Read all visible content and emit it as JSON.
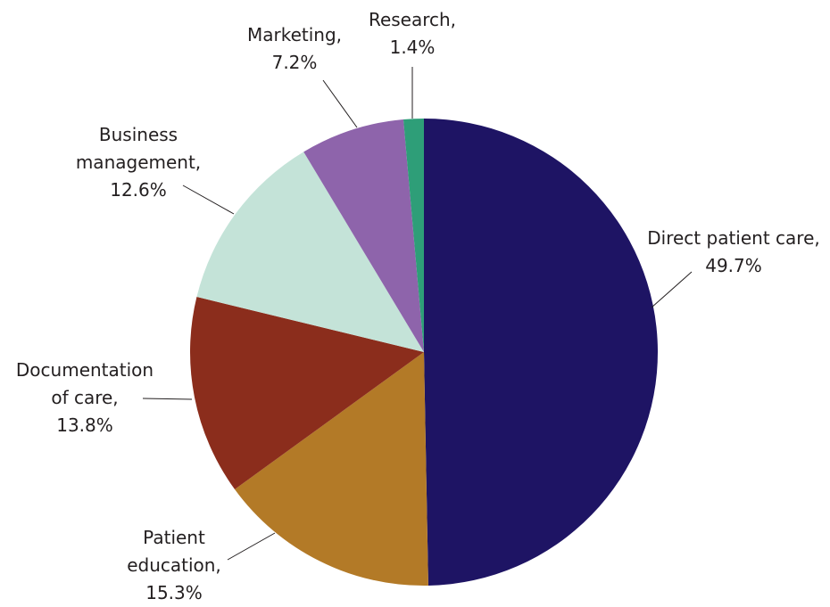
{
  "chart_data": {
    "type": "pie",
    "categories": [
      "Direct patient care,",
      "Patient\neducation,",
      "Documentation\nof care,",
      "Business\nmanagement,",
      "Marketing,",
      "Research,"
    ],
    "values": [
      49.7,
      15.3,
      13.8,
      12.6,
      7.2,
      1.4
    ],
    "value_labels": [
      "49.7%",
      "15.3%",
      "13.8%",
      "12.6%",
      "7.2%",
      "1.4%"
    ],
    "colors": [
      "#1e1464",
      "#b37a27",
      "#8b2d1c",
      "#c4e3d8",
      "#8e64ab",
      "#2e9e78"
    ]
  }
}
